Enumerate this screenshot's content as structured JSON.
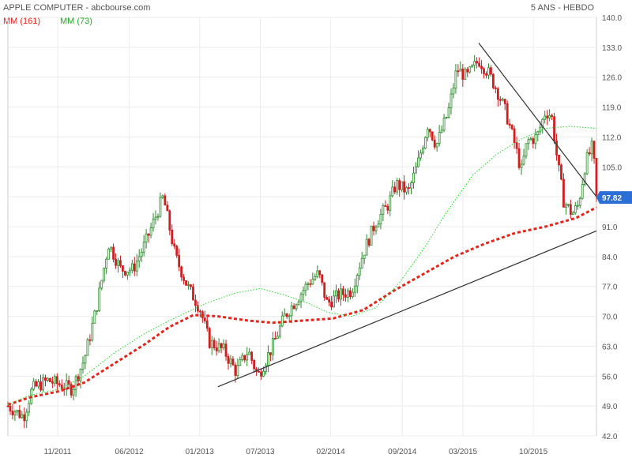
{
  "header": {
    "title": "APPLE COMPUTER - abcbourse.com",
    "period": "5 ANS - HEBDO",
    "legend": [
      {
        "label": "MM (161)",
        "color": "#e8231a"
      },
      {
        "label": "MM (73)",
        "color": "#22dd22"
      }
    ]
  },
  "chart_data": {
    "type": "candlestick",
    "title": "APPLE COMPUTER - abcbourse.com",
    "subtitle": "5 ANS - HEBDO",
    "ylim": [
      42,
      140
    ],
    "y_ticks": [
      "140.0",
      "133.0",
      "126.0",
      "119.0",
      "112.0",
      "105.0",
      "98.0",
      "91.0",
      "84.0",
      "77.0",
      "70.0",
      "63.0",
      "56.0",
      "49.0",
      "42.0"
    ],
    "x_ticks": [
      "11/2011",
      "06/2012",
      "01/2013",
      "07/2013",
      "02/2014",
      "09/2014",
      "03/2015",
      "10/2015"
    ],
    "last_value_label": "97.82",
    "grid": true,
    "price_path": [
      {
        "x": 2011.42,
        "y": 49.0
      },
      {
        "x": 2011.55,
        "y": 46.5
      },
      {
        "x": 2011.62,
        "y": 53.0
      },
      {
        "x": 2011.75,
        "y": 55.0
      },
      {
        "x": 2011.85,
        "y": 54.0
      },
      {
        "x": 2011.95,
        "y": 53.0
      },
      {
        "x": 2012.05,
        "y": 60.0
      },
      {
        "x": 2012.15,
        "y": 72.0
      },
      {
        "x": 2012.25,
        "y": 87.0
      },
      {
        "x": 2012.35,
        "y": 81.0
      },
      {
        "x": 2012.45,
        "y": 81.0
      },
      {
        "x": 2012.55,
        "y": 87.0
      },
      {
        "x": 2012.7,
        "y": 98.0
      },
      {
        "x": 2012.8,
        "y": 84.0
      },
      {
        "x": 2012.9,
        "y": 77.0
      },
      {
        "x": 2013.0,
        "y": 72.0
      },
      {
        "x": 2013.08,
        "y": 64.0
      },
      {
        "x": 2013.2,
        "y": 62.0
      },
      {
        "x": 2013.3,
        "y": 57.0
      },
      {
        "x": 2013.4,
        "y": 62.0
      },
      {
        "x": 2013.48,
        "y": 56.0
      },
      {
        "x": 2013.6,
        "y": 63.0
      },
      {
        "x": 2013.7,
        "y": 70.0
      },
      {
        "x": 2013.8,
        "y": 74.0
      },
      {
        "x": 2013.9,
        "y": 78.0
      },
      {
        "x": 2013.98,
        "y": 80.0
      },
      {
        "x": 2014.05,
        "y": 73.0
      },
      {
        "x": 2014.15,
        "y": 75.0
      },
      {
        "x": 2014.25,
        "y": 76.0
      },
      {
        "x": 2014.35,
        "y": 85.0
      },
      {
        "x": 2014.45,
        "y": 92.0
      },
      {
        "x": 2014.55,
        "y": 96.0
      },
      {
        "x": 2014.62,
        "y": 101.0
      },
      {
        "x": 2014.72,
        "y": 99.0
      },
      {
        "x": 2014.8,
        "y": 106.0
      },
      {
        "x": 2014.88,
        "y": 115.0
      },
      {
        "x": 2014.95,
        "y": 110.0
      },
      {
        "x": 2015.05,
        "y": 118.0
      },
      {
        "x": 2015.12,
        "y": 128.0
      },
      {
        "x": 2015.2,
        "y": 126.0
      },
      {
        "x": 2015.3,
        "y": 130.0
      },
      {
        "x": 2015.38,
        "y": 127.0
      },
      {
        "x": 2015.45,
        "y": 123.0
      },
      {
        "x": 2015.52,
        "y": 118.0
      },
      {
        "x": 2015.6,
        "y": 110.0
      },
      {
        "x": 2015.65,
        "y": 104.0
      },
      {
        "x": 2015.7,
        "y": 111.0
      },
      {
        "x": 2015.78,
        "y": 112.0
      },
      {
        "x": 2015.85,
        "y": 118.0
      },
      {
        "x": 2015.9,
        "y": 117.0
      },
      {
        "x": 2015.95,
        "y": 106.0
      },
      {
        "x": 2016.0,
        "y": 97.0
      },
      {
        "x": 2016.07,
        "y": 94.0
      },
      {
        "x": 2016.12,
        "y": 96.0
      },
      {
        "x": 2016.18,
        "y": 106.0
      },
      {
        "x": 2016.24,
        "y": 110.0
      },
      {
        "x": 2016.27,
        "y": 97.82
      }
    ],
    "series": [
      {
        "name": "MM (161)",
        "color": "#e8231a",
        "style": "dashed",
        "x": [
          2011.42,
          2011.6,
          2011.85,
          2012.05,
          2012.3,
          2012.55,
          2012.75,
          2012.95,
          2013.15,
          2013.4,
          2013.6,
          2013.85,
          2014.1,
          2014.35,
          2014.6,
          2014.85,
          2015.1,
          2015.35,
          2015.6,
          2015.85,
          2016.1,
          2016.27
        ],
        "values": [
          49.3,
          51.0,
          52.5,
          54.5,
          59.0,
          63.5,
          67.5,
          70.3,
          70.0,
          69.0,
          68.5,
          69.0,
          69.5,
          71.5,
          76.0,
          80.0,
          84.0,
          87.0,
          89.5,
          91.0,
          93.0,
          95.5
        ]
      },
      {
        "name": "MM (73)",
        "color": "#22dd22",
        "style": "dotted",
        "x": [
          2011.42,
          2011.6,
          2011.85,
          2012.05,
          2012.3,
          2012.55,
          2012.75,
          2012.9,
          2013.05,
          2013.3,
          2013.5,
          2013.7,
          2013.9,
          2014.05,
          2014.25,
          2014.45,
          2014.65,
          2014.85,
          2015.05,
          2015.25,
          2015.45,
          2015.65,
          2015.85,
          2016.05,
          2016.27
        ],
        "values": [
          49.3,
          51.5,
          53.0,
          56.0,
          61.5,
          66.0,
          69.0,
          71.0,
          73.0,
          75.5,
          76.5,
          75.0,
          73.0,
          71.0,
          70.0,
          72.0,
          78.0,
          86.0,
          95.0,
          103.0,
          108.0,
          111.5,
          114.0,
          114.5,
          114.0
        ]
      }
    ],
    "trendlines": [
      {
        "name": "support",
        "color": "#333333",
        "points": [
          {
            "x": 2013.15,
            "y": 53.5
          },
          {
            "x": 2016.27,
            "y": 90.0
          }
        ]
      },
      {
        "name": "resistance",
        "color": "#333333",
        "points": [
          {
            "x": 2015.3,
            "y": 134.0
          },
          {
            "x": 2016.27,
            "y": 98.0
          }
        ]
      }
    ]
  }
}
